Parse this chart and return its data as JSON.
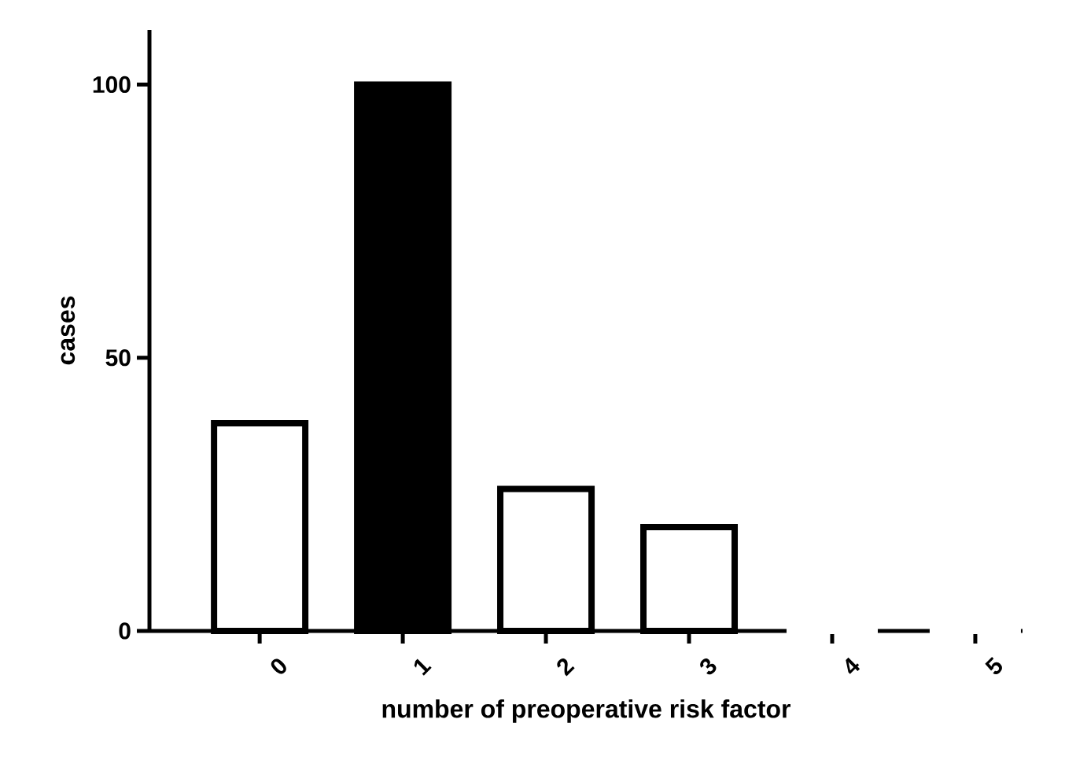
{
  "chart_data": {
    "type": "bar",
    "xlabel": "number of preoperative risk factor",
    "ylabel": "cases",
    "categories": [
      "0",
      "1",
      "2",
      "3",
      "4",
      "5"
    ],
    "values": [
      38,
      100,
      26,
      19,
      0,
      0
    ],
    "colors": [
      "#ffffff",
      "#000000",
      "#ffffff",
      "#ffffff",
      "#ffffff",
      "#ffffff"
    ],
    "ylim": [
      0,
      110
    ],
    "yticks": [
      0,
      50,
      100
    ],
    "grid": false
  }
}
